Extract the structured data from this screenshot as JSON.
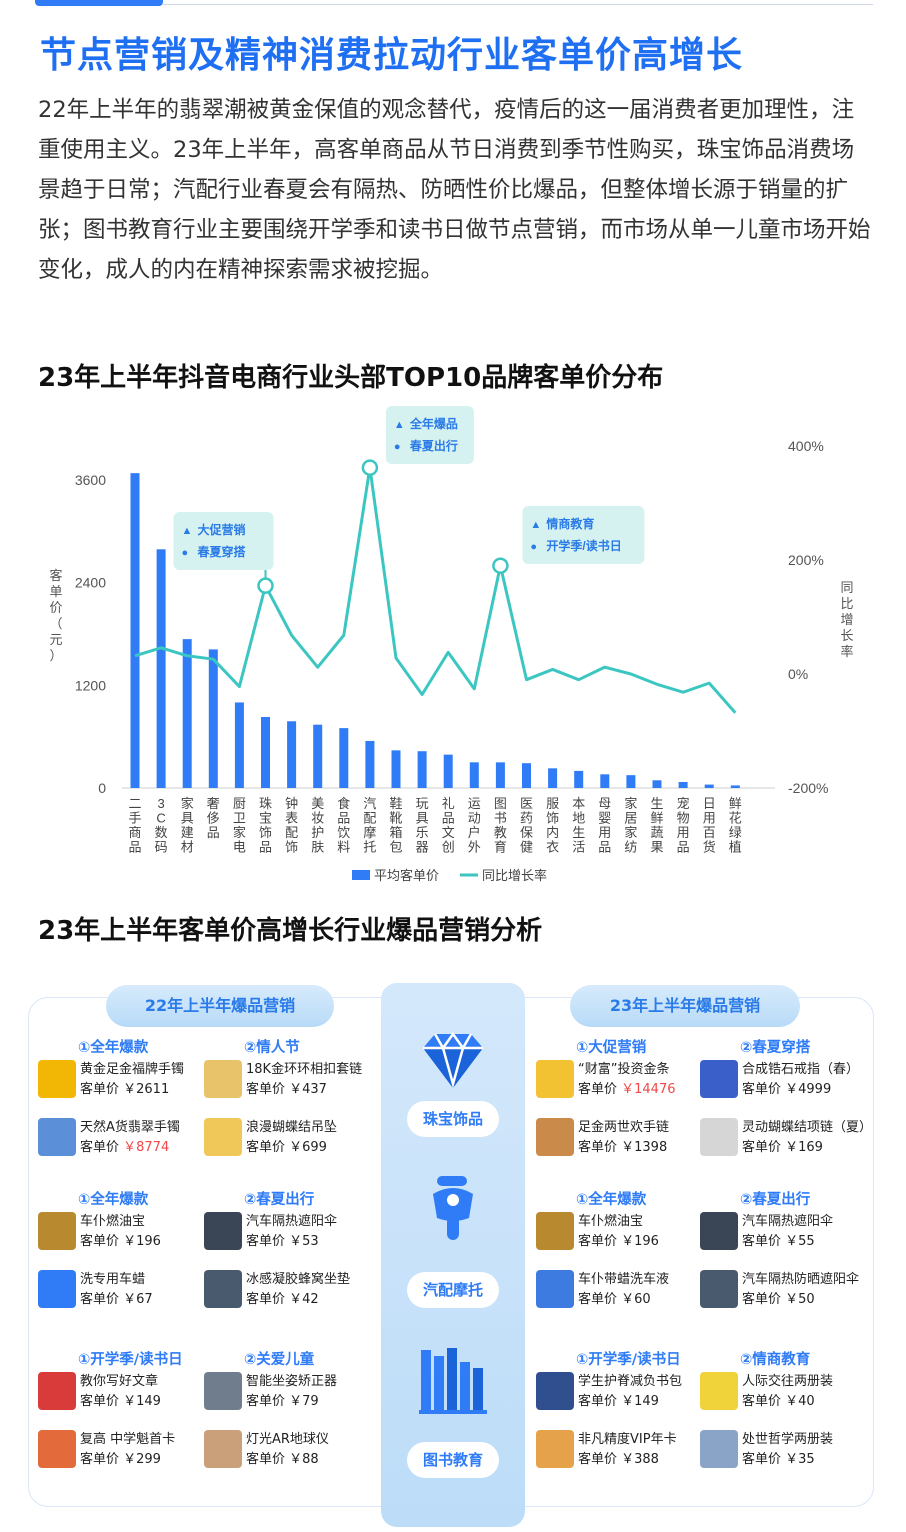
{
  "header": {
    "title": "节点营销及精神消费拉动行业客单价高增长",
    "intro": "22年上半年的翡翠潮被黄金保值的观念替代，疫情后的这一届消费者更加理性，注重使用主义。23年上半年，高客单商品从节日消费到季节性购买，珠宝饰品消费场景趋于日常；汽配行业春夏会有隔热、防晒性价比爆品，但整体增长源于销量的扩张；图书教育行业主要围绕开学季和读书日做节点营销，而市场从单一儿童市场开始变化，成人的内在精神探索需求被挖掘。"
  },
  "section1": {
    "title": "23年上半年抖音电商行业头部TOP10品牌客单价分布"
  },
  "section2": {
    "title": "23年上半年客单价高增长行业爆品营销分析"
  },
  "chart_data": {
    "type": "bar",
    "categories": [
      "二手商品",
      "3C数码",
      "家具建材",
      "奢侈品",
      "厨卫家电",
      "珠宝饰品",
      "钟表配饰",
      "美妆护肤",
      "食品饮料",
      "汽配摩托",
      "鞋靴箱包",
      "玩具乐器",
      "礼品文创",
      "运动户外",
      "图书教育",
      "医药保健",
      "服饰内衣",
      "本地生活",
      "母婴用品",
      "家居家纺",
      "生鲜蔬果",
      "宠物用品",
      "日用百货",
      "鲜花绿植"
    ],
    "series": [
      {
        "name": "平均客单价",
        "axis": "left",
        "type": "bar",
        "values": [
          3680,
          2790,
          1740,
          1620,
          1000,
          830,
          780,
          740,
          700,
          550,
          440,
          430,
          390,
          300,
          300,
          290,
          230,
          200,
          160,
          150,
          90,
          70,
          40,
          30
        ]
      },
      {
        "name": "同比增长率",
        "axis": "right",
        "type": "line",
        "values": [
          32,
          46,
          32,
          26,
          -22,
          155,
          68,
          12,
          68,
          362,
          28,
          -36,
          38,
          -26,
          190,
          -10,
          8,
          -10,
          12,
          0,
          -18,
          -32,
          -16,
          -68
        ]
      }
    ],
    "yaxis_left": {
      "label": "客单价（元）",
      "ticks": [
        "0",
        "1200",
        "2400",
        "3600"
      ],
      "range": [
        0,
        4000
      ]
    },
    "yaxis_right": {
      "label": "同比增长率",
      "ticks": [
        "-200%",
        "0%",
        "200%",
        "400%"
      ],
      "range": [
        -220,
        420
      ]
    },
    "legend": {
      "position": "bottom",
      "items": [
        "平均客单价",
        "同比增长率"
      ]
    },
    "annotations": [
      {
        "category": "珠宝饰品",
        "icon1": "fire-icon",
        "line1": "大促营销",
        "icon2": "sun-icon",
        "line2": "春夏穿搭"
      },
      {
        "category": "汽配摩托",
        "icon1": "car-icon",
        "line1": "全年爆品",
        "icon2": "car-icon",
        "line2": "春夏出行"
      },
      {
        "category": "图书教育",
        "icon1": "reader-icon",
        "line1": "情商教育",
        "icon2": "school-icon",
        "line2": "开学季/读书日"
      }
    ],
    "colors": {
      "bar": "#2f7cf6",
      "line": "#3cc6c2",
      "annotation_bg": "#d5f2f1"
    }
  },
  "marketing": {
    "left_head": "22年上半年爆品营销",
    "right_head": "23年上半年爆品营销",
    "categories": [
      "珠宝饰品",
      "汽配摩托",
      "图书教育"
    ],
    "price_prefix": "客单价",
    "groups": [
      {
        "title": "①全年爆款",
        "items": [
          {
            "name": "黄金足金福牌手镯",
            "price": "￥2611",
            "hot": false,
            "thumb": "#f2b705"
          },
          {
            "name": "天然A货翡翠手镯",
            "price": "￥8774",
            "hot": true,
            "thumb": "#5b8fd8"
          }
        ]
      },
      {
        "title": "②情人节",
        "items": [
          {
            "name": "18K金环环相扣套链",
            "price": "￥437",
            "hot": false,
            "thumb": "#e8c36a"
          },
          {
            "name": "浪漫蝴蝶结吊坠",
            "price": "￥699",
            "hot": false,
            "thumb": "#f0c85a"
          }
        ]
      },
      {
        "title": "①大促营销",
        "items": [
          {
            "name": "“财富”投资金条",
            "price": "￥14476",
            "hot": true,
            "thumb": "#f2c232"
          },
          {
            "name": "足金两世欢手链",
            "price": "￥1398",
            "hot": false,
            "thumb": "#c98a4a"
          }
        ]
      },
      {
        "title": "②春夏穿搭",
        "items": [
          {
            "name": "合成锆石戒指（春）",
            "price": "￥4999",
            "hot": false,
            "thumb": "#3b5fc9"
          },
          {
            "name": "灵动蝴蝶结项链（夏）",
            "price": "￥169",
            "hot": false,
            "thumb": "#d6d6d6"
          }
        ]
      },
      {
        "title": "①全年爆款",
        "items": [
          {
            "name": "车仆燃油宝",
            "price": "￥196",
            "hot": false,
            "thumb": "#b8892e"
          },
          {
            "name": "洗专用车蜡",
            "price": "￥67",
            "hot": false,
            "thumb": "#2f7cf6"
          }
        ]
      },
      {
        "title": "②春夏出行",
        "items": [
          {
            "name": "汽车隔热遮阳伞",
            "price": "￥53",
            "hot": false,
            "thumb": "#3a4656"
          },
          {
            "name": "冰感凝胶蜂窝坐垫",
            "price": "￥42",
            "hot": false,
            "thumb": "#4a5a6e"
          }
        ]
      },
      {
        "title": "①全年爆款",
        "items": [
          {
            "name": "车仆燃油宝",
            "price": "￥196",
            "hot": false,
            "thumb": "#b8892e"
          },
          {
            "name": "车仆带蜡洗车液",
            "price": "￥60",
            "hot": false,
            "thumb": "#3d7be0"
          }
        ]
      },
      {
        "title": "②春夏出行",
        "items": [
          {
            "name": "汽车隔热遮阳伞",
            "price": "￥55",
            "hot": false,
            "thumb": "#3a4656"
          },
          {
            "name": "汽车隔热防晒遮阳伞",
            "price": "￥50",
            "hot": false,
            "thumb": "#4a5a6e"
          }
        ]
      },
      {
        "title": "①开学季/读书日",
        "items": [
          {
            "name": "教你写好文章",
            "price": "￥149",
            "hot": false,
            "thumb": "#d93a3a"
          },
          {
            "name": "复高 中学魁首卡",
            "price": "￥299",
            "hot": false,
            "thumb": "#e26a3b"
          }
        ]
      },
      {
        "title": "②关爱儿童",
        "items": [
          {
            "name": "智能坐姿矫正器",
            "price": "￥79",
            "hot": false,
            "thumb": "#6f7d8c"
          },
          {
            "name": "灯光AR地球仪",
            "price": "￥88",
            "hot": false,
            "thumb": "#c9a07a"
          }
        ]
      },
      {
        "title": "①开学季/读书日",
        "items": [
          {
            "name": "学生护脊减负书包",
            "price": "￥149",
            "hot": false,
            "thumb": "#2f4f8f"
          },
          {
            "name": "非凡精度VIP年卡",
            "price": "￥388",
            "hot": false,
            "thumb": "#e5a24a"
          }
        ]
      },
      {
        "title": "②情商教育",
        "items": [
          {
            "name": "人际交往两册装",
            "price": "￥40",
            "hot": false,
            "thumb": "#f0d23a"
          },
          {
            "name": "处世哲学两册装",
            "price": "￥35",
            "hot": false,
            "thumb": "#8aa4c8"
          }
        ]
      }
    ]
  }
}
